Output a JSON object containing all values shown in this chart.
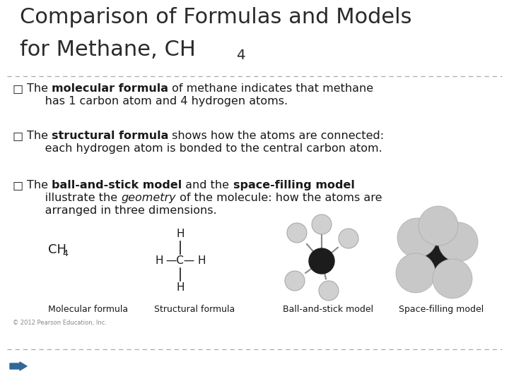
{
  "title_line1": "Comparison of Formulas and Models",
  "title_line2": "for Methane, CH",
  "title_subscript": "4",
  "title_fontsize": 22,
  "title_color": "#2a2a2a",
  "background_color": "#ffffff",
  "bullet_char": "□",
  "dashed_line_color": "#aaaaaa",
  "text_color": "#1a1a1a",
  "bullet_fontsize": 11.5,
  "caption_fontsize": 9,
  "caption1": "Molecular formula",
  "caption2": "Structural formula",
  "caption3": "Ball-and-stick model",
  "caption4": "Space-filling model",
  "copyright": "© 2012 Pearson Education, Inc.",
  "arrow_color": "#336699",
  "b1_parts": [
    [
      "The ",
      "normal"
    ],
    [
      "molecular formula",
      "bold"
    ],
    [
      " of methane indicates that methane",
      "normal"
    ]
  ],
  "b1_line2": "     has 1 carbon atom and 4 hydrogen atoms.",
  "b2_parts": [
    [
      "The ",
      "normal"
    ],
    [
      "structural formula",
      "bold"
    ],
    [
      " shows how the atoms are connected:",
      "normal"
    ]
  ],
  "b2_line2": "     each hydrogen atom is bonded to the central carbon atom.",
  "b3_parts": [
    [
      "The ",
      "normal"
    ],
    [
      "ball-and-stick model",
      "bold"
    ],
    [
      " and the ",
      "normal"
    ],
    [
      "space-filling model",
      "bold"
    ]
  ],
  "b3_line2_parts": [
    [
      "     illustrate the ",
      "normal"
    ],
    [
      "geometry",
      "italic"
    ],
    [
      " of the molecule: how the atoms are",
      "normal"
    ]
  ],
  "b3_line3": "     arranged in three dimensions."
}
